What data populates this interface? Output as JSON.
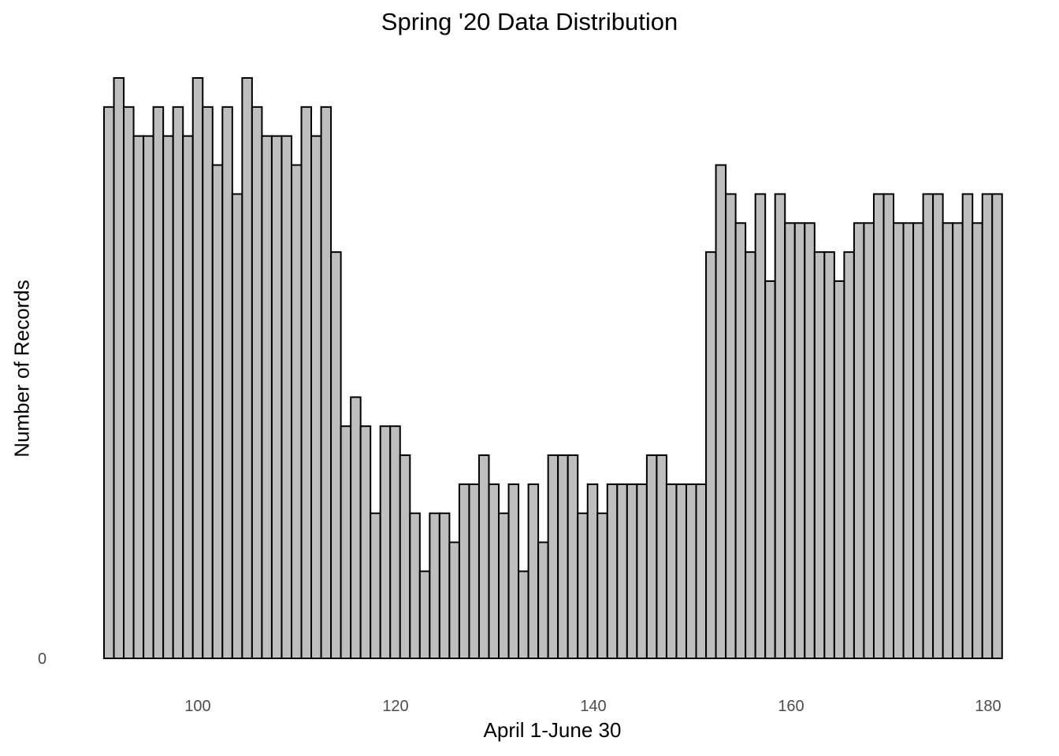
{
  "chart_data": {
    "type": "bar",
    "subtype": "histogram",
    "title": "Spring '20 Data Distribution",
    "xlabel": "April 1-June 30",
    "ylabel": "Number of Records",
    "x_ticks": [
      100,
      120,
      140,
      160,
      180
    ],
    "y_ticks": [
      0
    ],
    "xlim": [
      90.5,
      181.5
    ],
    "ylim": [
      0,
      20
    ],
    "grid": false,
    "legend": null,
    "bar_fill": "#bebebe",
    "bar_edge": "#000000",
    "bin_width": 1,
    "x": [
      91,
      92,
      93,
      94,
      95,
      96,
      97,
      98,
      99,
      100,
      101,
      102,
      103,
      104,
      105,
      106,
      107,
      108,
      109,
      110,
      111,
      112,
      113,
      114,
      115,
      116,
      117,
      118,
      119,
      120,
      121,
      122,
      123,
      124,
      125,
      126,
      127,
      128,
      129,
      130,
      131,
      132,
      133,
      134,
      135,
      136,
      137,
      138,
      139,
      140,
      141,
      142,
      143,
      144,
      145,
      146,
      147,
      148,
      149,
      150,
      151,
      152,
      153,
      154,
      155,
      156,
      157,
      158,
      159,
      160,
      161,
      162,
      163,
      164,
      165,
      166,
      167,
      168,
      169,
      170,
      171,
      172,
      173,
      174,
      175,
      176,
      177,
      178,
      179,
      180,
      181
    ],
    "values": [
      19,
      20,
      19,
      18,
      18,
      19,
      18,
      19,
      18,
      20,
      19,
      17,
      19,
      16,
      20,
      19,
      18,
      18,
      18,
      17,
      19,
      18,
      19,
      14,
      8,
      9,
      8,
      5,
      8,
      8,
      7,
      5,
      3,
      5,
      5,
      4,
      6,
      6,
      7,
      6,
      5,
      6,
      3,
      6,
      4,
      7,
      7,
      7,
      5,
      6,
      5,
      6,
      6,
      6,
      6,
      7,
      7,
      6,
      6,
      6,
      6,
      14,
      17,
      16,
      15,
      14,
      16,
      13,
      16,
      15,
      15,
      15,
      14,
      14,
      13,
      14,
      15,
      15,
      16,
      16,
      15,
      15,
      15,
      16,
      16,
      15,
      15,
      16,
      15,
      16,
      16
    ],
    "note": "Y axis counts are relative (only 0 tick is labeled); values estimated in equal steps."
  },
  "labels": {
    "title": "Spring '20 Data Distribution",
    "xlabel": "April 1-June 30",
    "ylabel": "Number of Records",
    "ytick0": "0",
    "xticks": [
      "100",
      "120",
      "140",
      "160",
      "180"
    ]
  }
}
